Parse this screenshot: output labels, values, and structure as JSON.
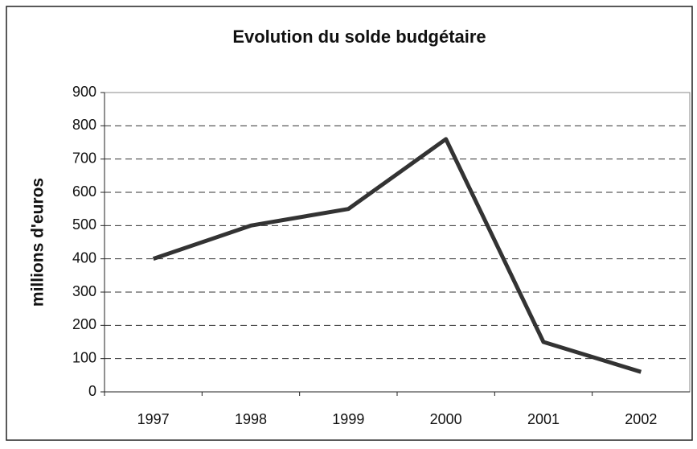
{
  "chart_data": {
    "type": "line",
    "title": "Evolution du solde budgétaire",
    "y_label": "millions d'euros",
    "categories": [
      "1997",
      "1998",
      "1999",
      "2000",
      "2001",
      "2002"
    ],
    "series": [
      {
        "name": "solde budgétaire",
        "color": "#333333",
        "values": [
          400,
          500,
          550,
          760,
          150,
          60
        ]
      }
    ],
    "ylim": [
      0,
      900
    ],
    "yticks": [
      0,
      100,
      200,
      300,
      400,
      500,
      600,
      700,
      800,
      900
    ],
    "grid": true
  }
}
